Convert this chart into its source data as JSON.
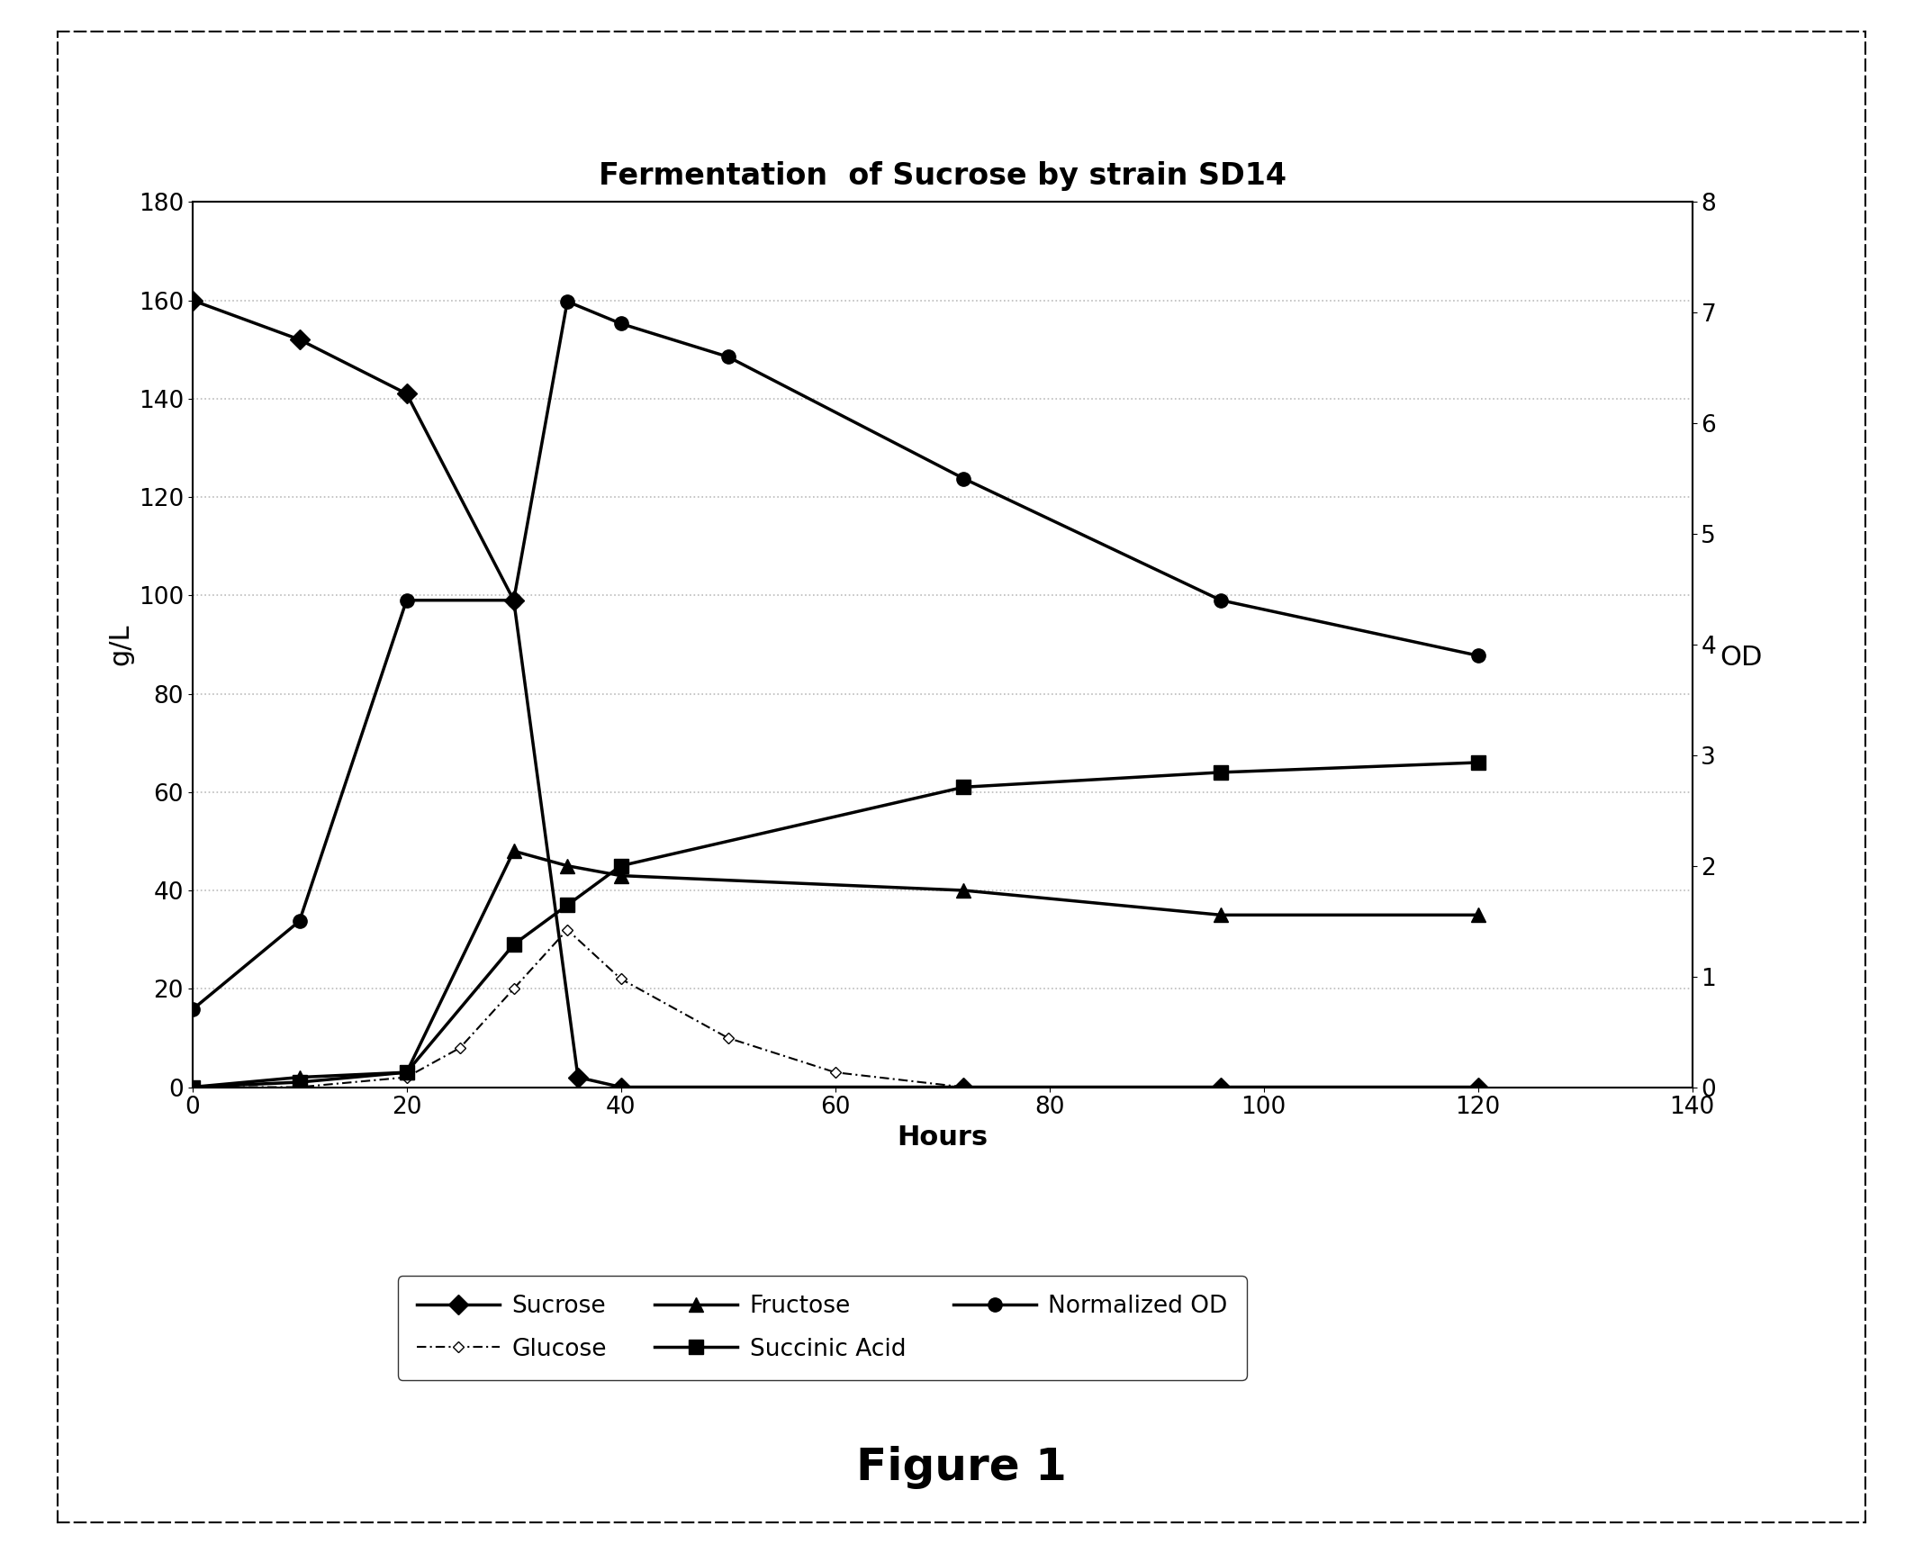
{
  "title": "Fermentation  of Sucrose by strain SD14",
  "xlabel": "Hours",
  "ylabel_left": "g/L",
  "ylabel_right": "OD",
  "figure_label": "Figure 1",
  "xlim": [
    0,
    140
  ],
  "ylim_left": [
    0,
    180
  ],
  "ylim_right": [
    0,
    8
  ],
  "xticks": [
    0,
    20,
    40,
    60,
    80,
    100,
    120,
    140
  ],
  "yticks_left": [
    0,
    20,
    40,
    60,
    80,
    100,
    120,
    140,
    160,
    180
  ],
  "yticks_right": [
    0,
    1,
    2,
    3,
    4,
    5,
    6,
    7,
    8
  ],
  "sucrose_x": [
    0,
    10,
    20,
    30,
    36,
    40,
    72,
    96,
    120
  ],
  "sucrose_y": [
    160,
    152,
    141,
    99,
    2,
    0,
    0,
    0,
    0
  ],
  "glucose_x": [
    0,
    10,
    20,
    25,
    30,
    35,
    40,
    50,
    60,
    72,
    96,
    120
  ],
  "glucose_y": [
    0,
    0,
    2,
    8,
    20,
    32,
    22,
    10,
    3,
    0,
    0,
    0
  ],
  "fructose_x": [
    0,
    10,
    20,
    30,
    35,
    40,
    72,
    96,
    120
  ],
  "fructose_y": [
    0,
    2,
    3,
    48,
    45,
    43,
    40,
    35,
    35
  ],
  "succinic_x": [
    0,
    10,
    20,
    30,
    35,
    40,
    72,
    96,
    120
  ],
  "succinic_y": [
    0,
    1,
    3,
    29,
    37,
    45,
    61,
    64,
    66
  ],
  "od_x": [
    0,
    10,
    20,
    30,
    35,
    40,
    50,
    72,
    96,
    120
  ],
  "od_y_raw": [
    0.7,
    1.5,
    4.4,
    4.4,
    7.1,
    6.9,
    6.6,
    5.5,
    4.4,
    3.9
  ],
  "od_scale": 22.5,
  "background_color": "#ffffff",
  "grid_color": "#bbbbbb",
  "fontsize_title": 24,
  "fontsize_labels": 22,
  "fontsize_ticks": 19,
  "fontsize_legend": 19,
  "fontsize_figure_label": 36,
  "legend_row1": [
    "Sucrose",
    "Glucose",
    "Fructose"
  ],
  "legend_row2": [
    "Succinic Acid",
    "Normalized OD"
  ]
}
